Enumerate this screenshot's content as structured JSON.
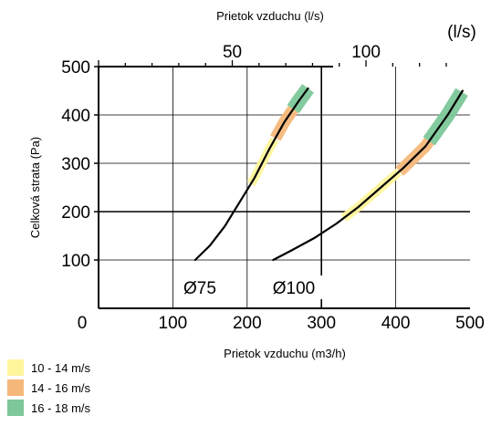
{
  "chart_data": {
    "type": "line",
    "title": "",
    "top_axis_label": "Prietok vzduchu (l/s)",
    "top_axis_unit": "(l/s)",
    "top_ticks": [
      "50",
      "100"
    ],
    "xlabel": "Prietok vzduchu (m3/h)",
    "ylabel": "Celková strata (Pa)",
    "x_ticks": [
      "0",
      "100",
      "200",
      "300",
      "400",
      "500"
    ],
    "y_ticks": [
      "100",
      "200",
      "300",
      "400",
      "500"
    ],
    "xlim": [
      0,
      500
    ],
    "ylim": [
      0,
      500
    ],
    "grid": true,
    "series": [
      {
        "name": "Ø75",
        "x": [
          130,
          150,
          170,
          190,
          210,
          230,
          250,
          270,
          282
        ],
        "y": [
          100,
          130,
          170,
          220,
          270,
          330,
          385,
          430,
          455
        ],
        "bands": [
          {
            "label_ref": 0,
            "x_from": 205,
            "x_to": 238
          },
          {
            "label_ref": 1,
            "x_from": 238,
            "x_to": 262
          },
          {
            "label_ref": 2,
            "x_from": 262,
            "x_to": 290
          }
        ]
      },
      {
        "name": "Ø100",
        "x": [
          235,
          260,
          290,
          320,
          350,
          380,
          410,
          440,
          470,
          490
        ],
        "y": [
          100,
          120,
          145,
          175,
          210,
          250,
          290,
          335,
          400,
          450
        ],
        "bands": [
          {
            "label_ref": 0,
            "x_from": 330,
            "x_to": 405
          },
          {
            "label_ref": 1,
            "x_from": 405,
            "x_to": 445
          },
          {
            "label_ref": 2,
            "x_from": 445,
            "x_to": 500
          }
        ]
      }
    ]
  },
  "legend": [
    {
      "label": "10 - 14 m/s",
      "color": "#fff59d"
    },
    {
      "label": "14 - 16 m/s",
      "color": "#f5b87a"
    },
    {
      "label": "16 - 18 m/s",
      "color": "#7dc79a"
    }
  ]
}
